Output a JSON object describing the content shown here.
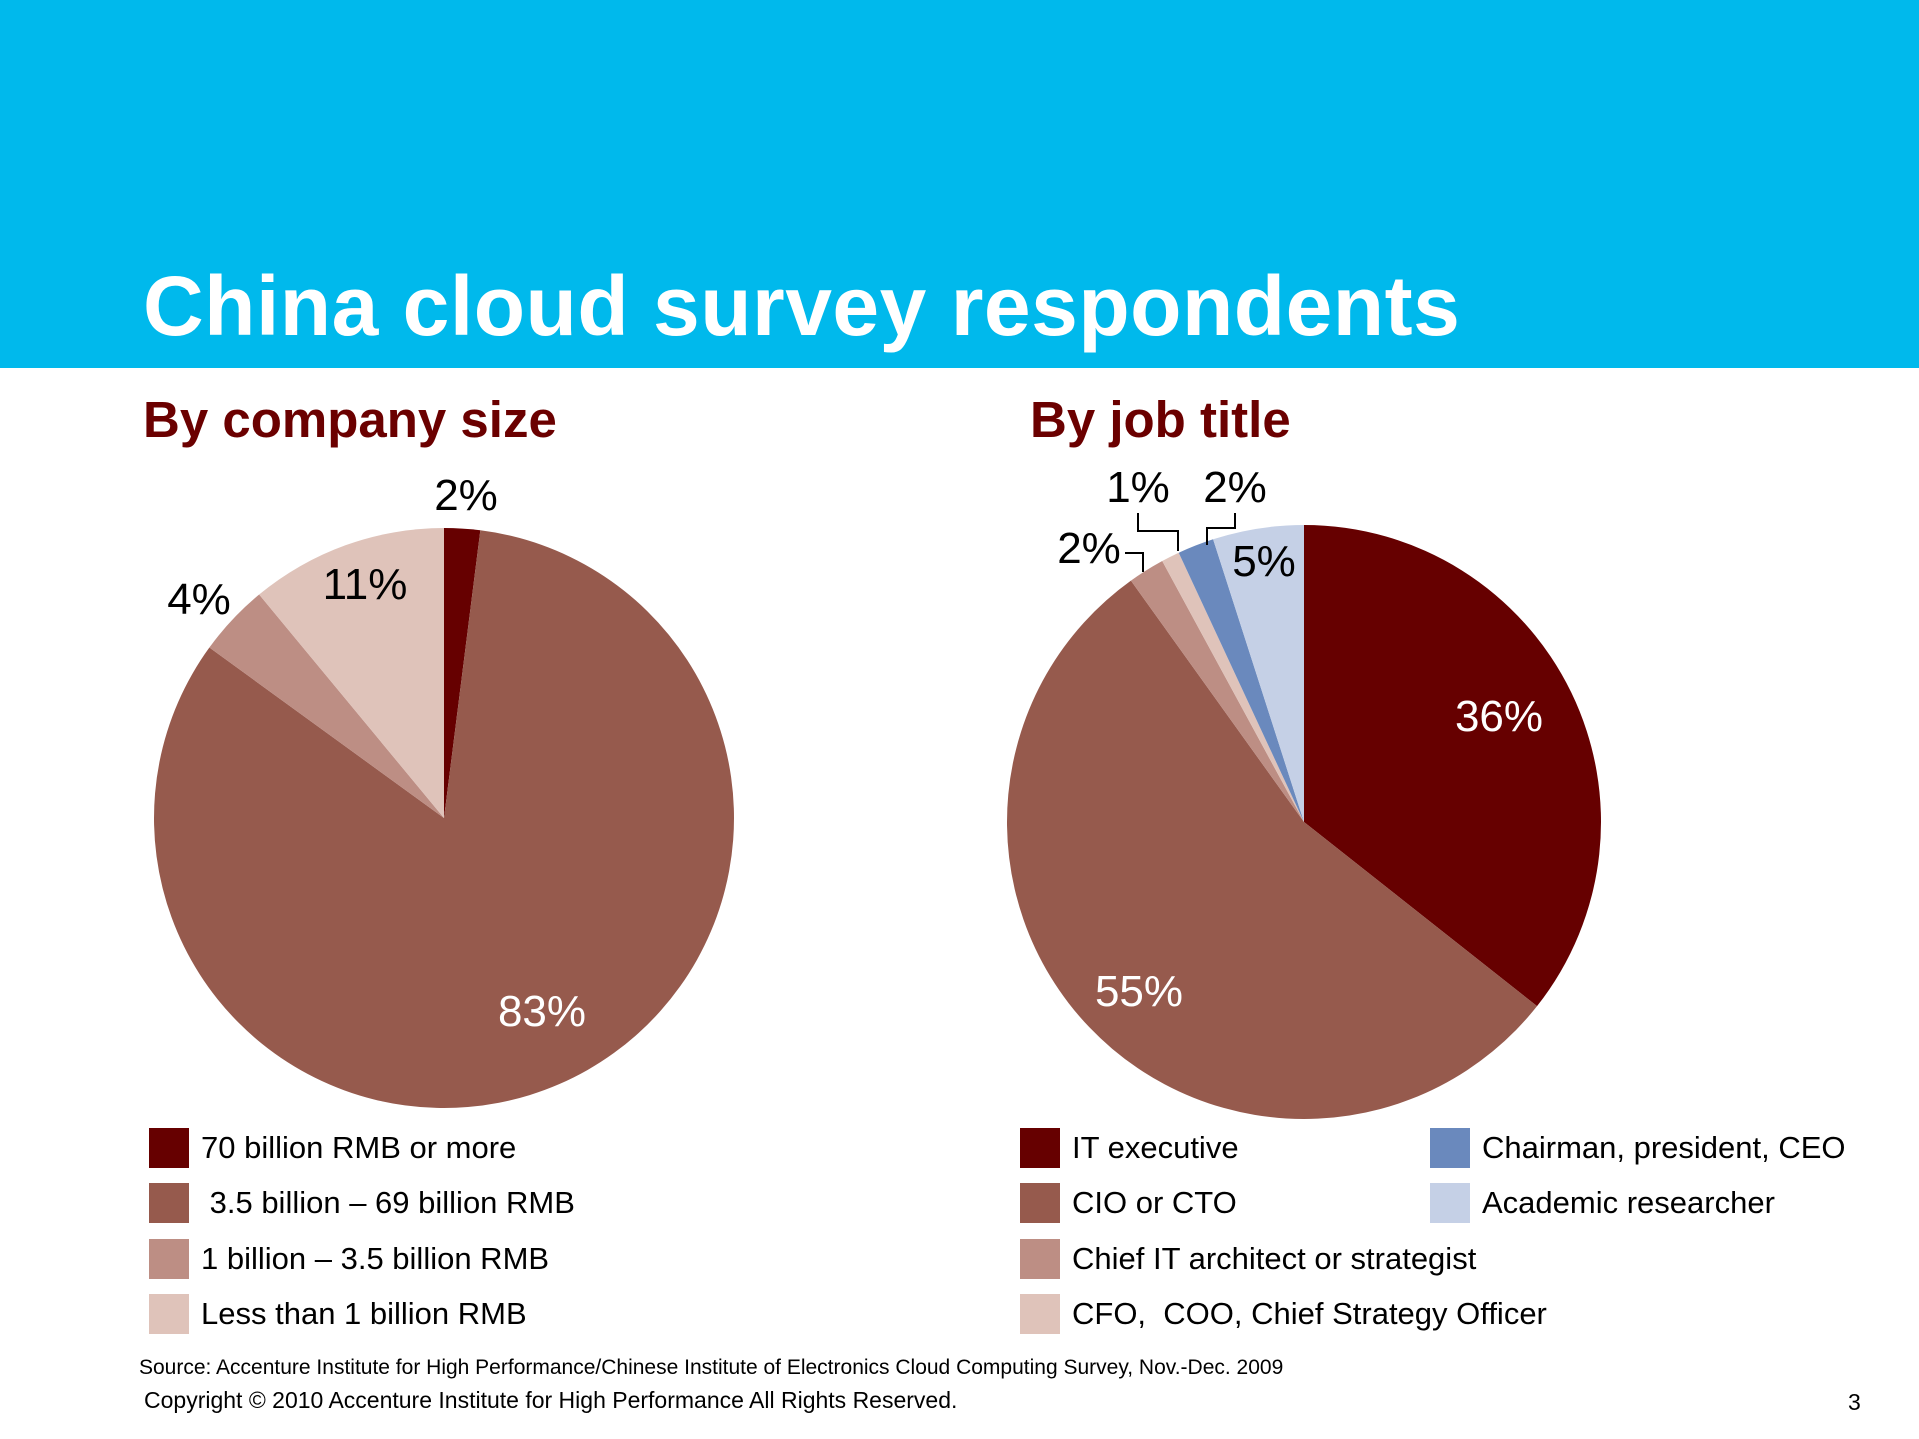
{
  "slide": {
    "title": "China cloud survey respondents",
    "source": "Source: Accenture Institute for High Performance/Chinese Institute of Electronics Cloud Computing Survey, Nov.-Dec. 2009",
    "copyright": "Copyright © 2010 Accenture Institute for High Performance All Rights Reserved.",
    "page_number": "3",
    "header_color": "#00B9EC",
    "subtitle_color": "#6B0000"
  },
  "chart_data": [
    {
      "type": "pie",
      "title": "By company size",
      "categories": [
        "70 billion RMB or more",
        " 3.5 billion – 69 billion RMB",
        "1 billion – 3.5 billion RMB",
        "Less than 1 billion RMB"
      ],
      "values": [
        2,
        83,
        4,
        11
      ],
      "labels": [
        "2%",
        "83%",
        "4%",
        "11%"
      ],
      "colors": [
        "#660000",
        "#965A4D",
        "#BD8E84",
        "#DFC3BA"
      ],
      "legend_position": "bottom"
    },
    {
      "type": "pie",
      "title": "By job title",
      "categories": [
        "IT executive",
        "CIO or CTO",
        "Chief IT architect or strategist",
        "CFO,  COO, Chief Strategy Officer",
        "Chairman, president, CEO",
        "Academic researcher"
      ],
      "values": [
        36,
        55,
        2,
        1,
        2,
        5
      ],
      "labels": [
        "36%",
        "55%",
        "2%",
        "1%",
        "2%",
        "5%"
      ],
      "colors": [
        "#660000",
        "#965A4D",
        "#BD8E84",
        "#DFC3BA",
        "#6A89BD",
        "#C5D0E6"
      ],
      "legend_position": "bottom"
    }
  ]
}
